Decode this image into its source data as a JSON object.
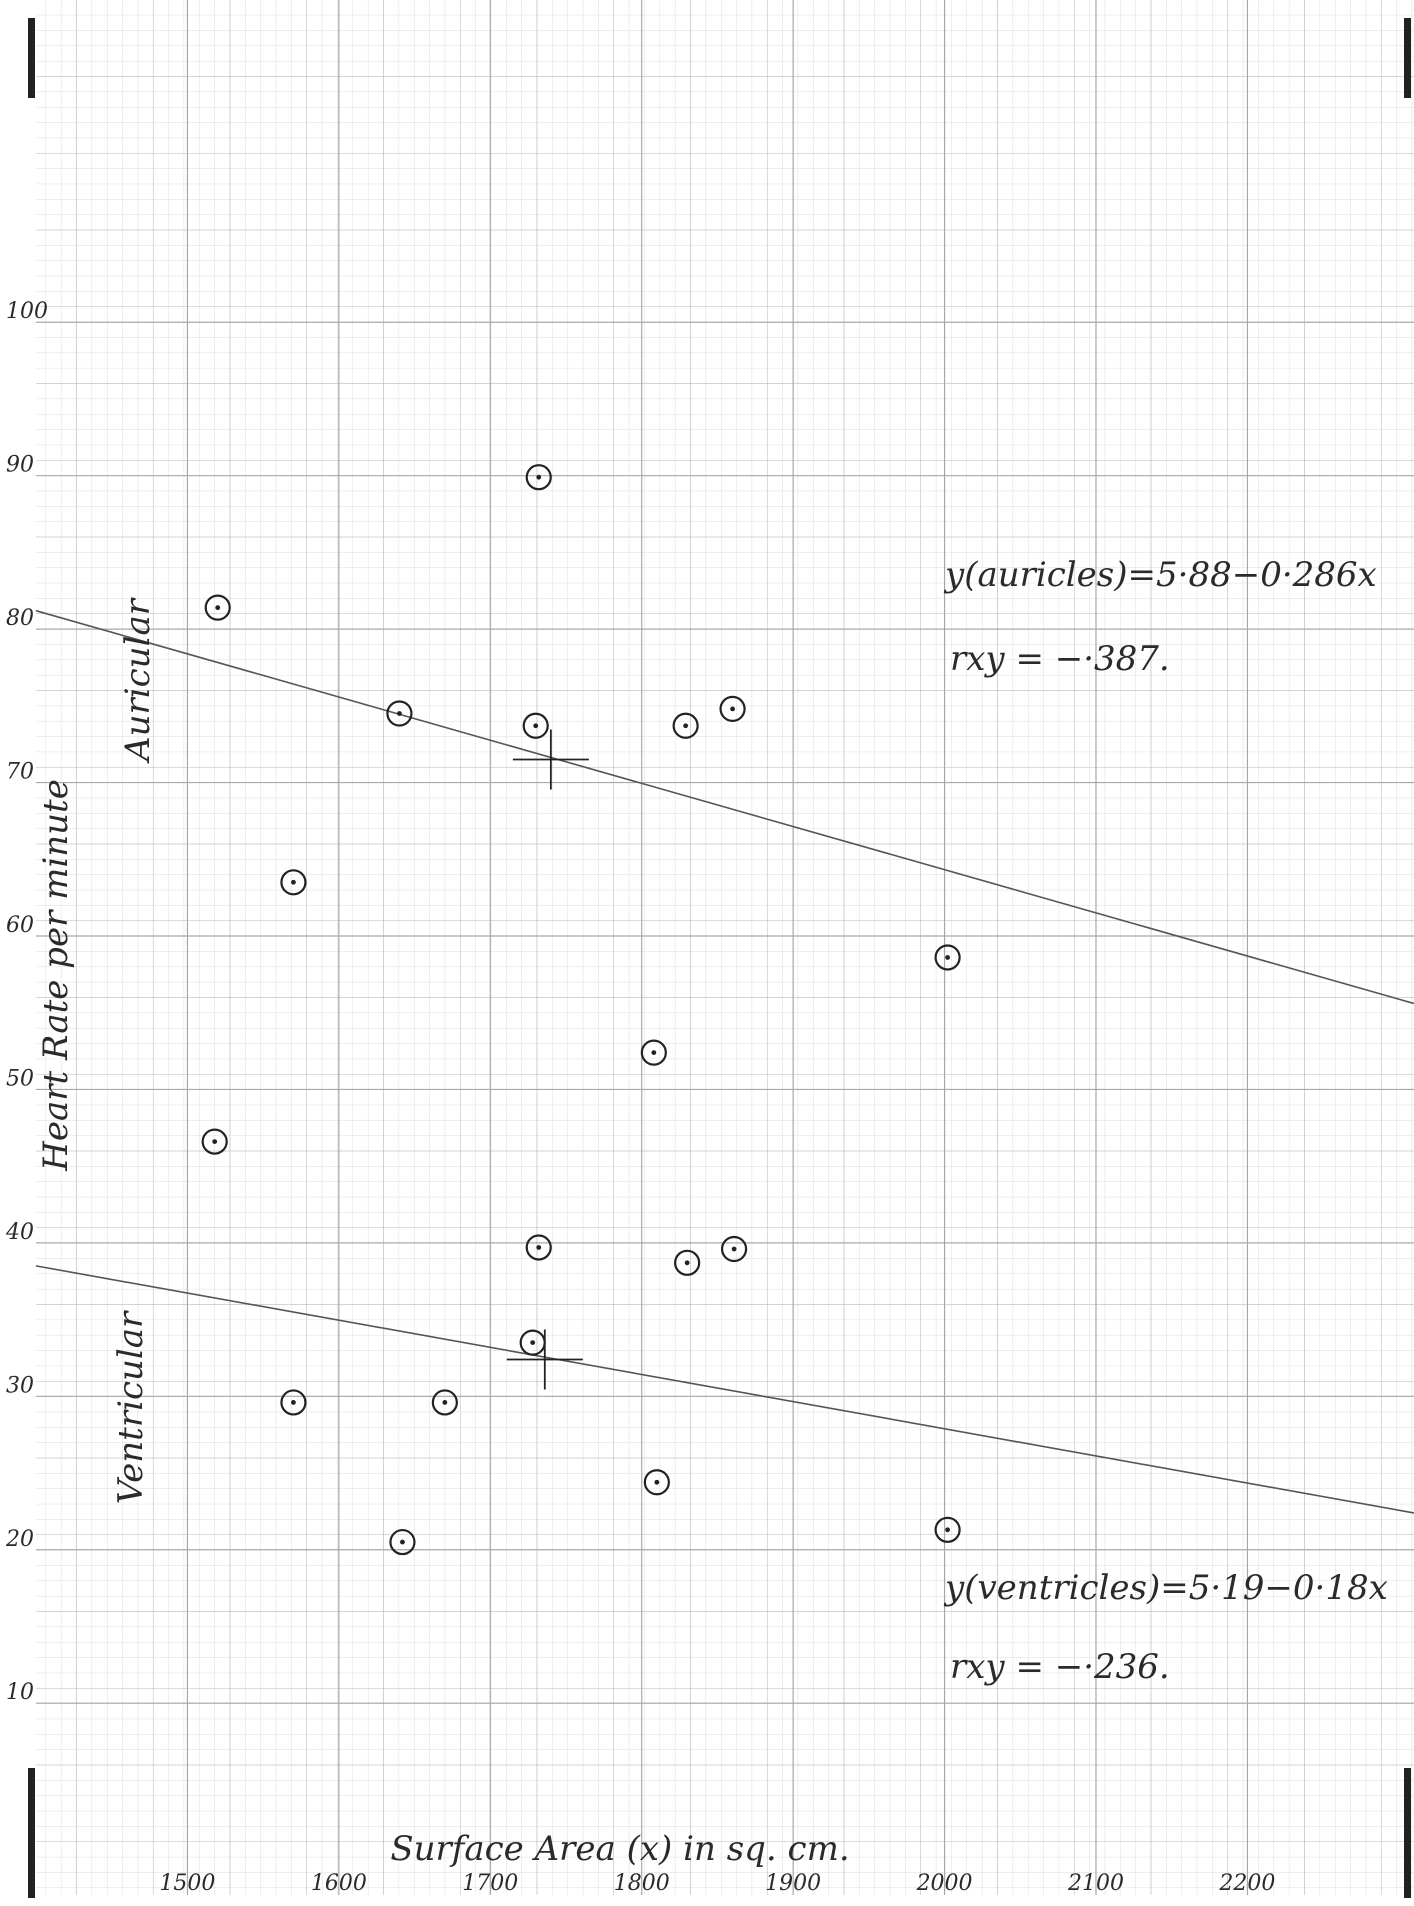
{
  "chart_data": {
    "type": "scatter",
    "x_label": "Surface Area (x) in sq. cm.",
    "y_label": "Heart Rate per minute",
    "xlim": [
      1400,
      2310
    ],
    "ylim": [
      -2.5,
      121
    ],
    "xticks": [
      1500,
      1600,
      1700,
      1800,
      1900,
      2000,
      2100,
      2200
    ],
    "yticks": [
      10,
      20,
      30,
      40,
      50,
      60,
      70,
      80,
      90,
      100
    ],
    "grid": true,
    "series": [
      {
        "name": "Auricular",
        "color": "#222222",
        "x": [
          1520,
          1640,
          1730,
          1829,
          1860,
          1732,
          1570,
          2002,
          1808
        ],
        "values": [
          81.4,
          74.5,
          73.7,
          73.7,
          74.8,
          89.9,
          63.5,
          58.6,
          52.4
        ],
        "mean": {
          "x": 1740,
          "y": 71.5
        },
        "fit": {
          "x": [
            1400,
            2310
          ],
          "values": [
            81.2,
            55.6
          ]
        },
        "equation": "y(auricles)=5·88−0·286x",
        "correlation": "rxy  =  −·387."
      },
      {
        "name": "Ventricular",
        "color": "#222222",
        "x": [
          1518,
          1732,
          1830,
          1861,
          1728,
          1570,
          1670,
          1810,
          1642,
          2002
        ],
        "values": [
          46.6,
          39.7,
          38.7,
          39.6,
          33.5,
          29.6,
          29.6,
          24.4,
          20.5,
          21.3
        ],
        "mean": {
          "x": 1736,
          "y": 32.4
        },
        "fit": {
          "x": [
            1400,
            2310
          ],
          "values": [
            38.5,
            22.4
          ]
        },
        "equation": "y(ventricles)=5·19−0·18x",
        "correlation": "rxy     =  −·236."
      }
    ]
  }
}
